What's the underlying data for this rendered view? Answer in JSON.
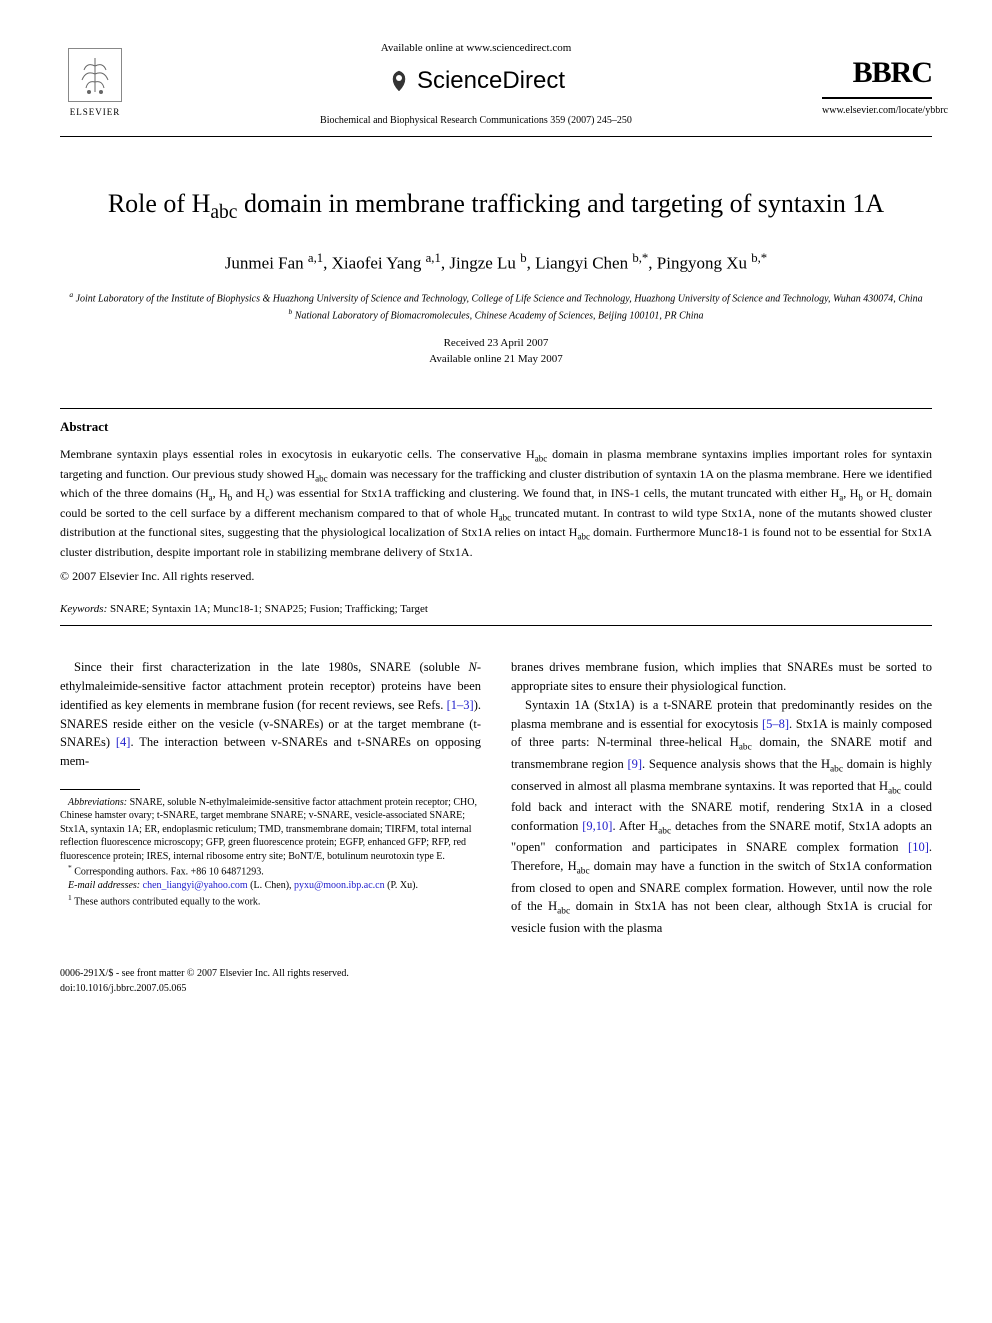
{
  "header": {
    "elsevier_label": "ELSEVIER",
    "available_online": "Available online at www.sciencedirect.com",
    "sciencedirect": "ScienceDirect",
    "journal_citation": "Biochemical and Biophysical Research Communications 359 (2007) 245–250",
    "bbrc": "BBRC",
    "journal_url": "www.elsevier.com/locate/ybbrc"
  },
  "title_line1": "Role of H",
  "title_sub": "abc",
  "title_line2": " domain in membrane trafficking and targeting of syntaxin 1A",
  "authors_html": "Junmei Fan <sup>a,1</sup>, Xiaofei Yang <sup>a,1</sup>, Jingze Lu <sup>b</sup>, Liangyi Chen <sup>b,*</sup>, Pingyong Xu <sup>b,*</sup>",
  "affiliations": {
    "a": "Joint Laboratory of the Institute of Biophysics & Huazhong University of Science and Technology, College of Life Science and Technology, Huazhong University of Science and Technology, Wuhan 430074, China",
    "b": "National Laboratory of Biomacromolecules, Chinese Academy of Sciences, Beijing 100101, PR China"
  },
  "dates": {
    "received": "Received 23 April 2007",
    "available": "Available online 21 May 2007"
  },
  "abstract": {
    "heading": "Abstract",
    "body": "Membrane syntaxin plays essential roles in exocytosis in eukaryotic cells. The conservative Habc domain in plasma membrane syntaxins implies important roles for syntaxin targeting and function. Our previous study showed Habc domain was necessary for the trafficking and cluster distribution of syntaxin 1A on the plasma membrane. Here we identified which of the three domains (Ha, Hb and Hc) was essential for Stx1A trafficking and clustering. We found that, in INS-1 cells, the mutant truncated with either Ha, Hb or Hc domain could be sorted to the cell surface by a different mechanism compared to that of whole Habc truncated mutant. In contrast to wild type Stx1A, none of the mutants showed cluster distribution at the functional sites, suggesting that the physiological localization of Stx1A relies on intact Habc domain. Furthermore Munc18-1 is found not to be essential for Stx1A cluster distribution, despite important role in stabilizing membrane delivery of Stx1A.",
    "copyright": "© 2007 Elsevier Inc. All rights reserved."
  },
  "keywords": {
    "label": "Keywords:",
    "list": "SNARE; Syntaxin 1A; Munc18-1; SNAP25; Fusion; Trafficking; Target"
  },
  "body": {
    "left_p1": "Since their first characterization in the late 1980s, SNARE (soluble N-ethylmaleimide-sensitive factor attachment protein receptor) proteins have been identified as key elements in membrane fusion (for recent reviews, see Refs. [1–3]). SNARES reside either on the vesicle (v-SNAREs) or at the target membrane (t-SNAREs) [4]. The interaction between v-SNAREs and t-SNAREs on opposing mem-",
    "right_p1": "branes drives membrane fusion, which implies that SNAREs must be sorted to appropriate sites to ensure their physiological function.",
    "right_p2": "Syntaxin 1A (Stx1A) is a t-SNARE protein that predominantly resides on the plasma membrane and is essential for exocytosis [5–8]. Stx1A is mainly composed of three parts: N-terminal three-helical Habc domain, the SNARE motif and transmembrane region [9]. Sequence analysis shows that the Habc domain is highly conserved in almost all plasma membrane syntaxins. It was reported that Habc could fold back and interact with the SNARE motif, rendering Stx1A in a closed conformation [9,10]. After Habc detaches from the SNARE motif, Stx1A adopts an \"open\" conformation and participates in SNARE complex formation [10]. Therefore, Habc domain may have a function in the switch of Stx1A conformation from closed to open and SNARE complex formation. However, until now the role of the Habc domain in Stx1A has not been clear, although Stx1A is crucial for vesicle fusion with the plasma"
  },
  "footnotes": {
    "abbreviations_label": "Abbreviations:",
    "abbreviations": "SNARE, soluble N-ethylmaleimide-sensitive factor attachment protein receptor; CHO, Chinese hamster ovary; t-SNARE, target membrane SNARE; v-SNARE, vesicle-associated SNARE; Stx1A, syntaxin 1A; ER, endoplasmic reticulum; TMD, transmembrane domain; TIRFM, total internal reflection fluorescence microscopy; GFP, green fluorescence protein; EGFP, enhanced GFP; RFP, red fluorescence protein; IRES, internal ribosome entry site; BoNT/E, botulinum neurotoxin type E.",
    "corresponding": "Corresponding authors. Fax. +86 10 64871293.",
    "email_label": "E-mail addresses:",
    "email1": "chen_liangyi@yahoo.com",
    "email1_name": "(L. Chen),",
    "email2": "pyxu@moon.ibp.ac.cn",
    "email2_name": "(P. Xu).",
    "equal": "These authors contributed equally to the work."
  },
  "footer": {
    "copyright_line": "0006-291X/$ - see front matter © 2007 Elsevier Inc. All rights reserved.",
    "doi": "doi:10.1016/j.bbrc.2007.05.065"
  },
  "refs": {
    "r1_3": "[1–3]",
    "r4": "[4]",
    "r5_8": "[5–8]",
    "r9": "[9]",
    "r9_10": "[9,10]",
    "r10": "[10]"
  },
  "colors": {
    "link": "#2220cc",
    "text": "#000000",
    "background": "#ffffff"
  }
}
